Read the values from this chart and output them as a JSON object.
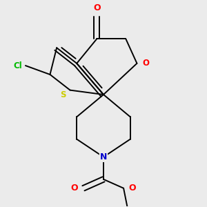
{
  "background_color": "#ebebeb",
  "bond_color": "#000000",
  "atom_colors": {
    "O": "#ff0000",
    "N": "#0000cc",
    "S": "#cccc00",
    "Cl": "#00bb00",
    "C": "#000000"
  },
  "figsize": [
    3.0,
    3.0
  ],
  "dpi": 100
}
